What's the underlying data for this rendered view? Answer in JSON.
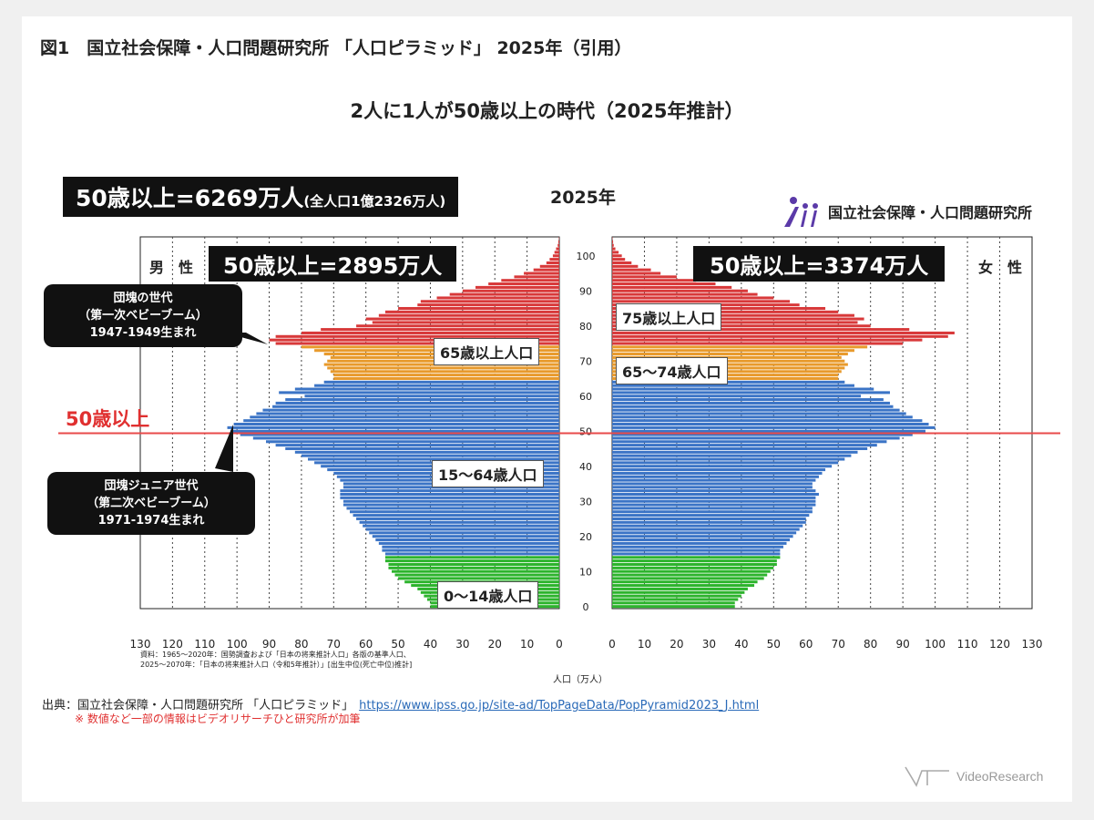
{
  "header": {
    "figure_title": "図1　国立社会保障・人口問題研究所 「人口ピラミッド」 2025年（引用）",
    "subtitle": "2人に1人が50歳以上の時代（2025年推計）"
  },
  "summary": {
    "total_main": "50歳以上=6269万人",
    "total_sub": "(全人口1億2326万人)",
    "year": "2025年",
    "male_50plus": "50歳以上=2895万人",
    "female_50plus": "50歳以上=3374万人"
  },
  "logo": {
    "icon": "ipss-logo-icon",
    "text": "国立社会保障・人口問題研究所"
  },
  "labels": {
    "male": "男　性",
    "female": "女　性",
    "fifty_line": "50歳以上",
    "age_75_plus": "75歳以上人口",
    "age_65_plus": "65歳以上人口",
    "age_65_74": "65〜74歳人口",
    "age_15_64": "15〜64歳人口",
    "age_0_14": "0〜14歳人口"
  },
  "callouts": {
    "dankai": [
      "団塊の世代",
      "（第一次ベビーブーム）",
      "1947-1949生まれ"
    ],
    "dankai_jr": [
      "団塊ジュニア世代",
      "（第二次ベビーブーム）",
      "1971-1974生まれ"
    ]
  },
  "source": {
    "small_lines": [
      "資料：1965〜2020年：国勢調査および「日本の将来推計人口」各版の基準人口、",
      "2025〜2070年：「日本の将来推計人口（令和5年推計）」[出生中位(死亡中位)推計]"
    ],
    "axis_title": "人口（万人）",
    "credit": "出典：国立社会保障・人口問題研究所 「人口ピラミッド」",
    "credit_url": "https://www.ipss.go.jp/site-ad/TopPageData/PopPyramid2023_J.html",
    "note": "※  数値など一部の情報はビデオリサーチひと研究所が加筆"
  },
  "footer_logo": {
    "icon": "video-research-logo-icon",
    "text": "VideoResearch"
  },
  "colors": {
    "age_0_14": "#2db42d",
    "age_15_64": "#3b74c6",
    "age_65_74": "#e89a2c",
    "age_75_plus": "#d8393a",
    "fifty_line": "#e84a4a",
    "logo_purple": "#5b3aa8"
  },
  "chart_data": {
    "type": "bar",
    "orientation": "horizontal population pyramid",
    "xlabel": "人口（万人）",
    "xlim": [
      0,
      130
    ],
    "x_ticks": [
      0,
      10,
      20,
      30,
      40,
      50,
      60,
      70,
      80,
      90,
      100,
      110,
      120,
      130
    ],
    "y_ticks": [
      0,
      10,
      20,
      30,
      40,
      50,
      60,
      70,
      80,
      90,
      100
    ],
    "age_groups": [
      {
        "name": "0〜14歳",
        "from": 0,
        "to": 14
      },
      {
        "name": "15〜64歳",
        "from": 15,
        "to": 64
      },
      {
        "name": "65〜74歳",
        "from": 65,
        "to": 74
      },
      {
        "name": "75歳以上",
        "from": 75,
        "to": 105
      }
    ],
    "reference_line_age": 50,
    "ages": [
      0,
      1,
      2,
      3,
      4,
      5,
      6,
      7,
      8,
      9,
      10,
      11,
      12,
      13,
      14,
      15,
      16,
      17,
      18,
      19,
      20,
      21,
      22,
      23,
      24,
      25,
      26,
      27,
      28,
      29,
      30,
      31,
      32,
      33,
      34,
      35,
      36,
      37,
      38,
      39,
      40,
      41,
      42,
      43,
      44,
      45,
      46,
      47,
      48,
      49,
      50,
      51,
      52,
      53,
      54,
      55,
      56,
      57,
      58,
      59,
      60,
      61,
      62,
      63,
      64,
      65,
      66,
      67,
      68,
      69,
      70,
      71,
      72,
      73,
      74,
      75,
      76,
      77,
      78,
      79,
      80,
      81,
      82,
      83,
      84,
      85,
      86,
      87,
      88,
      89,
      90,
      91,
      92,
      93,
      94,
      95,
      96,
      97,
      98,
      99,
      100,
      101,
      102,
      103,
      104,
      105
    ],
    "series": [
      {
        "name": "男性",
        "values": [
          40,
          40,
          41,
          42,
          43,
          44,
          46,
          48,
          50,
          51,
          52,
          53,
          53,
          54,
          54,
          54,
          55,
          55,
          56,
          57,
          58,
          59,
          60,
          61,
          62,
          63,
          64,
          65,
          66,
          67,
          67,
          68,
          68,
          68,
          67,
          67,
          68,
          69,
          70,
          72,
          74,
          76,
          78,
          80,
          82,
          85,
          88,
          91,
          95,
          99,
          102,
          103,
          101,
          98,
          96,
          94,
          92,
          89,
          88,
          85,
          79,
          87,
          82,
          76,
          73,
          70,
          70,
          71,
          72,
          73,
          72,
          71,
          73,
          76,
          80,
          88,
          90,
          88,
          80,
          74,
          63,
          58,
          60,
          56,
          54,
          50,
          44,
          43,
          38,
          34,
          30,
          26,
          22,
          18,
          14,
          11,
          8,
          6,
          4,
          3,
          2,
          1.5,
          1,
          0.5,
          0.3,
          0.1
        ]
      },
      {
        "name": "女性",
        "values": [
          38,
          38,
          39,
          40,
          41,
          42,
          44,
          45,
          47,
          48,
          49,
          50,
          51,
          51,
          52,
          52,
          52,
          53,
          54,
          55,
          56,
          57,
          58,
          59,
          60,
          60,
          61,
          62,
          62,
          63,
          63,
          63,
          64,
          63,
          62,
          62,
          63,
          64,
          65,
          66,
          68,
          70,
          72,
          74,
          76,
          79,
          82,
          85,
          89,
          93,
          97,
          100,
          98,
          96,
          93,
          91,
          89,
          87,
          86,
          84,
          77,
          86,
          81,
          75,
          72,
          70,
          70,
          71,
          72,
          73,
          72,
          71,
          73,
          75,
          79,
          90,
          96,
          104,
          106,
          92,
          80,
          76,
          78,
          75,
          70,
          66,
          58,
          55,
          50,
          45,
          42,
          37,
          32,
          26,
          20,
          15,
          12,
          8,
          6,
          4,
          3,
          2,
          1,
          0.5,
          0.3,
          0.1
        ]
      }
    ]
  }
}
